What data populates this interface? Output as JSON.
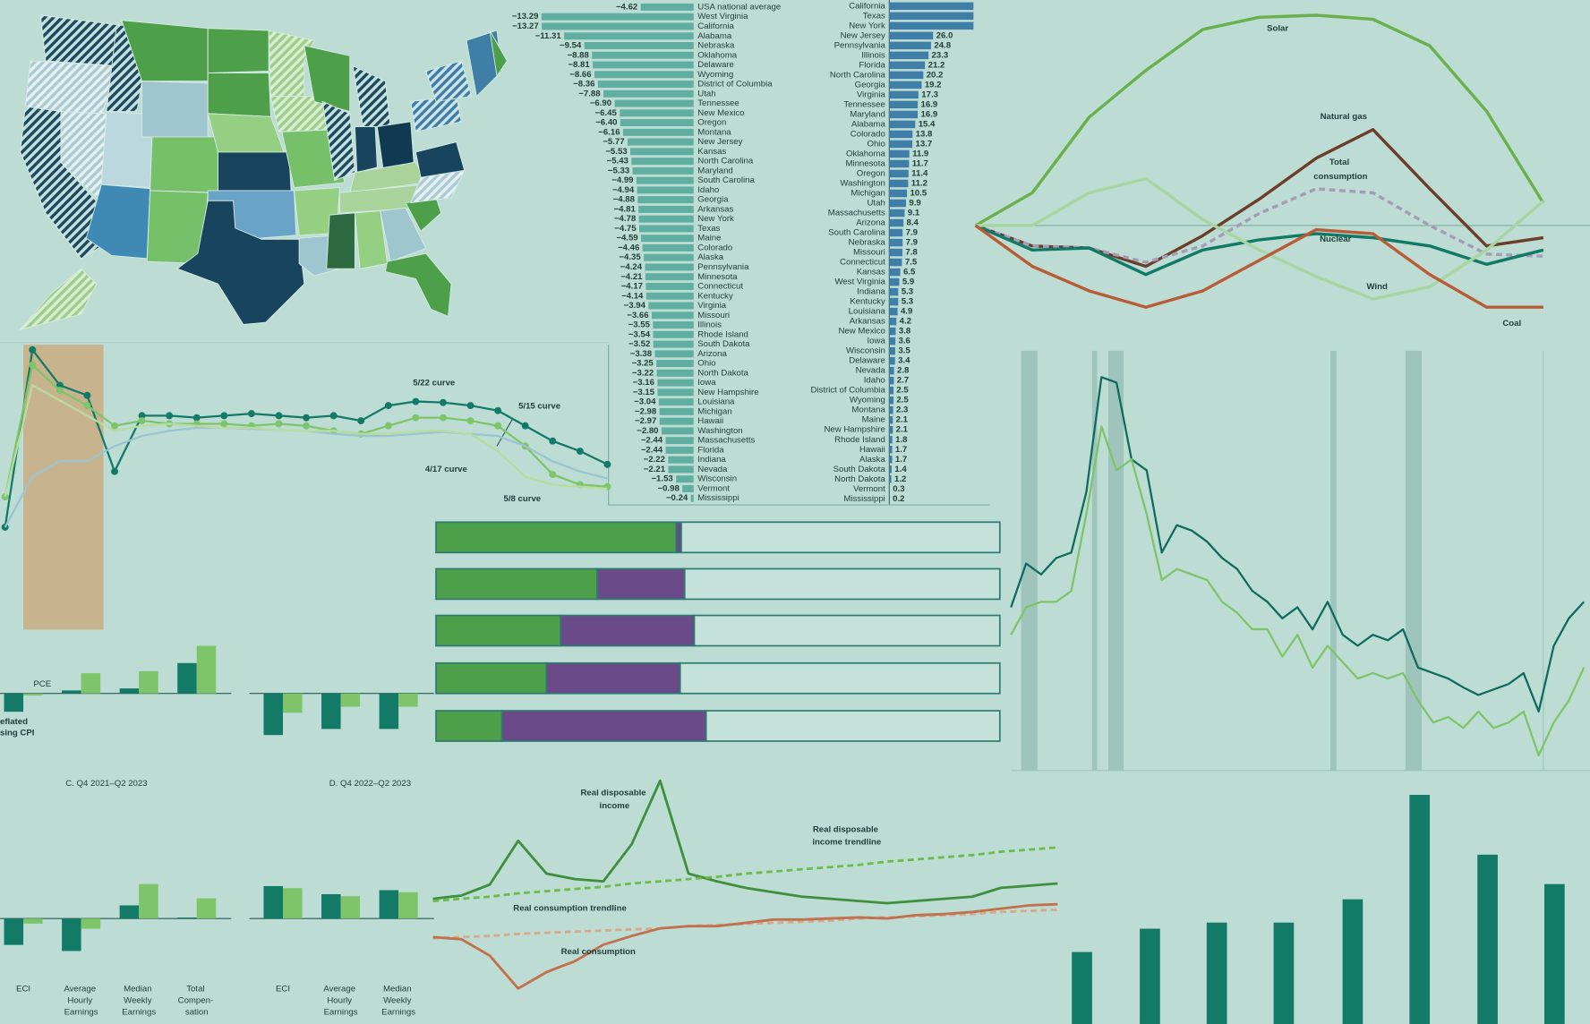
{
  "chart_data": [
    {
      "type": "bar",
      "orientation": "horizontal",
      "color": "#5fae9f",
      "categories": [
        "USA national average",
        "West Virginia",
        "California",
        "Alabama",
        "Nebraska",
        "Oklahoma",
        "Delaware",
        "Wyoming",
        "District of Columbia",
        "Utah",
        "Tennessee",
        "New Mexico",
        "Oregon",
        "Montana",
        "New Jersey",
        "Kansas",
        "North Carolina",
        "Maryland",
        "South Carolina",
        "Idaho",
        "Georgia",
        "Arkansas",
        "New York",
        "Texas",
        "Maine",
        "Colorado",
        "Alaska",
        "Pennsylvania",
        "Minnesota",
        "Connecticut",
        "Kentucky",
        "Virginia",
        "Missouri",
        "Illinois",
        "Rhode Island",
        "South Dakota",
        "Arizona",
        "Ohio",
        "North Dakota",
        "Iowa",
        "New Hampshire",
        "Louisiana",
        "Michigan",
        "Hawaii",
        "Washington",
        "Massachusetts",
        "Florida",
        "Indiana",
        "Nevada",
        "Wisconsin",
        "Vermont",
        "Mississippi"
      ],
      "values": [
        -4.62,
        -13.29,
        -13.27,
        -11.31,
        -9.54,
        -8.88,
        -8.81,
        -8.66,
        -8.36,
        -7.88,
        -6.9,
        -6.45,
        -6.4,
        -6.16,
        -5.77,
        -5.53,
        -5.43,
        -5.33,
        -4.99,
        -4.94,
        -4.88,
        -4.81,
        -4.78,
        -4.75,
        -4.59,
        -4.46,
        -4.35,
        -4.24,
        -4.21,
        -4.17,
        -4.14,
        -3.94,
        -3.66,
        -3.55,
        -3.54,
        -3.52,
        -3.38,
        -3.25,
        -3.22,
        -3.16,
        -3.15,
        -3.04,
        -2.98,
        -2.97,
        -2.8,
        -2.44,
        -2.44,
        -2.22,
        -2.21,
        -1.53,
        -0.98,
        -0.24
      ],
      "value_labels": [
        "−4.62",
        "−13.29",
        "−13.27",
        "−11.31",
        "−9.54",
        "−8.88",
        "−8.81",
        "−8.66",
        "−8.36",
        "−7.88",
        "−6.90",
        "−6.45",
        "−6.40",
        "−6.16",
        "−5.77",
        "−5.53",
        "−5.43",
        "−5.33",
        "−4.99",
        "−4.94",
        "−4.88",
        "−4.81",
        "−4.78",
        "−4.75",
        "−4.59",
        "−4.46",
        "−4.35",
        "−4.24",
        "−4.21",
        "−4.17",
        "−4.14",
        "−3.94",
        "−3.66",
        "−3.55",
        "−3.54",
        "−3.52",
        "−3.38",
        "−3.25",
        "−3.22",
        "−3.16",
        "−3.15",
        "−3.04",
        "−2.98",
        "−2.97",
        "−2.80",
        "−2.44",
        "−2.44",
        "−2.22",
        "−2.21",
        "−1.53",
        "−0.98",
        "−0.24"
      ]
    },
    {
      "type": "bar",
      "orientation": "horizontal",
      "color": "#3f7ea6",
      "categories": [
        "California",
        "Texas",
        "New York",
        "New Jersey",
        "Pennsylvania",
        "Illinois",
        "Florida",
        "North Carolina",
        "Georgia",
        "Virginia",
        "Tennessee",
        "Maryland",
        "Alabama",
        "Colorado",
        "Ohio",
        "Oklahoma",
        "Minnesota",
        "Oregon",
        "Washington",
        "Michigan",
        "Utah",
        "Massachusetts",
        "Arizona",
        "South Carolina",
        "Nebraska",
        "Missouri",
        "Connecticut",
        "Kansas",
        "West Virginia",
        "Indiana",
        "Kentucky",
        "Louisiana",
        "Arkansas",
        "New Mexico",
        "Iowa",
        "Wisconsin",
        "Delaware",
        "Nevada",
        "Idaho",
        "District of Columbia",
        "Wyoming",
        "Montana",
        "Maine",
        "New Hampshire",
        "Rhode Island",
        "Hawaii",
        "Alaska",
        "South Dakota",
        "North Dakota",
        "Vermont",
        "Mississippi"
      ],
      "values": [
        50,
        50,
        50,
        26.0,
        24.8,
        23.3,
        21.2,
        20.2,
        19.2,
        17.3,
        16.9,
        16.9,
        15.4,
        13.8,
        13.7,
        11.9,
        11.7,
        11.4,
        11.2,
        10.5,
        9.9,
        9.1,
        8.4,
        7.9,
        7.9,
        7.8,
        7.5,
        6.5,
        5.9,
        5.3,
        5.3,
        4.9,
        4.2,
        3.8,
        3.6,
        3.5,
        3.4,
        2.8,
        2.7,
        2.5,
        2.5,
        2.3,
        2.1,
        2.1,
        1.8,
        1.7,
        1.7,
        1.4,
        1.2,
        0.3,
        0.2
      ],
      "value_labels": [
        null,
        null,
        null,
        "26.0",
        "24.8",
        "23.3",
        "21.2",
        "20.2",
        "19.2",
        "17.3",
        "16.9",
        "16.9",
        "15.4",
        "13.8",
        "13.7",
        "11.9",
        "11.7",
        "11.4",
        "11.2",
        "10.5",
        "9.9",
        "9.1",
        "8.4",
        "7.9",
        "7.9",
        "7.8",
        "7.5",
        "6.5",
        "5.9",
        "5.3",
        "5.3",
        "4.9",
        "4.2",
        "3.8",
        "3.6",
        "3.5",
        "3.4",
        "2.8",
        "2.7",
        "2.5",
        "2.5",
        "2.3",
        "2.1",
        "2.1",
        "1.8",
        "1.7",
        "1.7",
        "1.4",
        "1.2",
        "0.3",
        "0.2"
      ]
    },
    {
      "type": "line",
      "series": [
        {
          "name": "Solar",
          "color": "#6ab04c",
          "values": [
            0,
            16,
            53,
            76,
            96,
            102,
            103,
            101,
            88,
            56,
            11
          ]
        },
        {
          "name": "Natural gas",
          "color": "#6b3d2a",
          "values": [
            0,
            -10,
            -11,
            -20,
            -5,
            13,
            33,
            47,
            18,
            -10,
            -6
          ]
        },
        {
          "name": "Total consumption",
          "color": "#a59cb5",
          "dash": true,
          "values": [
            0,
            -10,
            -11,
            -18,
            -10,
            6,
            18,
            16,
            0,
            -14,
            -15
          ]
        },
        {
          "name": "Nuclear",
          "color": "#117a65",
          "values": [
            0,
            -12,
            -11,
            -24,
            -12,
            -7,
            -4,
            -6,
            -10,
            -19,
            -12
          ]
        },
        {
          "name": "Wind",
          "color": "#a8d5a2",
          "values": [
            0,
            0,
            16,
            23,
            3,
            -12,
            -25,
            -36,
            -30,
            -12,
            12
          ]
        },
        {
          "name": "Coal",
          "color": "#b85c38",
          "values": [
            0,
            -20,
            -32,
            -40,
            -32,
            -17,
            -2,
            -4,
            -24,
            -40,
            -40
          ]
        }
      ]
    },
    {
      "type": "line",
      "series": [
        {
          "name": "5/22 curve",
          "color": "#137a68",
          "markers": true,
          "values": [
            10,
            27.5,
            24,
            23,
            15.5,
            21,
            21,
            20.8,
            21,
            21.2,
            21,
            20.8,
            21,
            20.5,
            22,
            22.4,
            22.3,
            22,
            21.5,
            20,
            18.5,
            17.5,
            16.2
          ]
        },
        {
          "name": "5/15 curve",
          "color": "#7ec46a",
          "markers": true,
          "values": [
            13,
            26,
            23.5,
            22,
            20,
            20.5,
            20.2,
            20.2,
            20.2,
            20,
            20.2,
            20,
            19.5,
            19.2,
            20,
            20.8,
            20.8,
            20.5,
            20,
            18,
            15.2,
            14.2,
            14
          ]
        },
        {
          "name": "4/17 curve",
          "color": "#9cc3d0",
          "values": [
            10,
            15,
            16.5,
            16.5,
            18,
            19,
            19.5,
            19.8,
            19.8,
            19.7,
            19.6,
            19.5,
            19.2,
            19,
            19,
            19.2,
            19.4,
            19.2,
            19,
            18,
            16.5,
            15.5,
            14.8
          ]
        },
        {
          "name": "5/8 curve",
          "color": "#b8dc9f",
          "values": [
            13,
            24,
            22.5,
            21,
            19.5,
            20,
            20.2,
            20,
            19.8,
            19.8,
            19.6,
            19.5,
            19.5,
            19.2,
            19.2,
            19.5,
            19.5,
            19.2,
            17.5,
            15,
            14.2,
            14,
            13.8
          ]
        }
      ]
    },
    {
      "type": "bar",
      "annotations": [
        "PCE",
        "eflated",
        "sing CPI"
      ],
      "series": [
        {
          "color": "#137a68",
          "values": [
            -1.8,
            0.3,
            0.5,
            3.0
          ]
        },
        {
          "color": "#7ec46a",
          "values": [
            -0.2,
            2.0,
            2.2,
            4.7
          ]
        }
      ]
    },
    {
      "type": "bar",
      "series": [
        {
          "color": "#137a68",
          "values": [
            -4.1,
            -3.5,
            -3.5
          ]
        },
        {
          "color": "#7ec46a",
          "values": [
            -1.9,
            -1.3,
            -1.3
          ]
        }
      ]
    },
    {
      "type": "bar",
      "title": "C. Q4 2021–Q2 2023",
      "categories": [
        "ECI",
        "Average Hourly Earnings",
        "Median Weekly Earnings",
        "Total Compen- sation"
      ],
      "series": [
        {
          "color": "#137a68",
          "values": [
            -2.6,
            -3.2,
            1.3,
            0.1
          ]
        },
        {
          "color": "#7ec46a",
          "values": [
            -0.5,
            -1.0,
            3.4,
            2.0
          ]
        }
      ]
    },
    {
      "type": "bar",
      "title": "D. Q4 2022–Q2 2023",
      "categories": [
        "ECI",
        "Average Hourly Earnings",
        "Median Weekly Earnings"
      ],
      "series": [
        {
          "color": "#137a68",
          "values": [
            3.2,
            2.4,
            2.8
          ]
        },
        {
          "color": "#7ec46a",
          "values": [
            3.0,
            2.2,
            2.6
          ]
        }
      ]
    },
    {
      "type": "bar",
      "orientation": "horizontal",
      "stacked": true,
      "series": [
        {
          "color": "#4e9f4a",
          "values": [
            42.6,
            28.6,
            22.1,
            19.6,
            11.7
          ]
        },
        {
          "color": "#6b4a8a",
          "values": [
            0.9,
            15.5,
            23.7,
            23.7,
            36.2
          ]
        },
        {
          "color": "#c4e2da",
          "values": [
            56.5,
            55.9,
            54.2,
            56.7,
            52.1
          ]
        }
      ]
    },
    {
      "type": "line",
      "series": [
        {
          "name": "Real disposable income",
          "color": "#3f8f3f",
          "values": [
            12.2,
            12.5,
            13.5,
            17.5,
            14.5,
            14,
            13.8,
            17.2,
            23,
            14.5,
            13.8,
            13.2,
            12.8,
            12.4,
            12.2,
            12,
            11.8,
            12,
            12.2,
            12.4,
            13.2,
            13.4,
            13.6
          ]
        },
        {
          "name": "Real disposable income trendline",
          "color": "#6dbb4a",
          "dash": true,
          "values": [
            12.0,
            12.2,
            12.4,
            12.7,
            12.9,
            13.1,
            13.3,
            13.6,
            13.8,
            14.0,
            14.2,
            14.5,
            14.7,
            14.9,
            15.1,
            15.3,
            15.6,
            15.8,
            16.0,
            16.2,
            16.5,
            16.7,
            16.9
          ]
        },
        {
          "name": "Real consumption trendline",
          "color": "#d8a88a",
          "dash": true,
          "values": [
            8.6,
            8.7,
            8.8,
            9.0,
            9.1,
            9.2,
            9.3,
            9.4,
            9.5,
            9.7,
            9.8,
            9.9,
            10.0,
            10.1,
            10.2,
            10.4,
            10.5,
            10.6,
            10.7,
            10.8,
            11.0,
            11.1,
            11.2
          ]
        },
        {
          "name": "Real consumption",
          "color": "#c0714d",
          "values": [
            8.7,
            8.5,
            7.0,
            4.0,
            5.5,
            6.5,
            8.0,
            8.8,
            9.5,
            9.7,
            9.7,
            10.0,
            10.3,
            10.3,
            10.4,
            10.5,
            10.4,
            10.7,
            10.8,
            11.0,
            11.3,
            11.6,
            11.7
          ]
        }
      ]
    },
    {
      "type": "line",
      "series": [
        {
          "color": "#0f6b5c",
          "values": [
            19.5,
            23.5,
            22.5,
            24,
            24.5,
            30,
            40.5,
            40,
            33,
            32,
            24.5,
            27,
            26.5,
            25.5,
            24,
            23,
            21,
            20,
            18.5,
            19.5,
            17.5,
            20,
            17,
            16,
            17,
            16.5,
            17.5,
            14,
            13.5,
            13,
            12.2,
            11.5,
            12,
            12.5,
            13.5,
            10,
            16,
            18.5,
            20
          ]
        },
        {
          "color": "#7ec46a",
          "values": [
            17,
            19.5,
            20,
            20,
            21,
            28,
            36,
            32,
            33,
            28,
            22,
            23,
            22.5,
            22,
            20,
            19,
            17.5,
            17.5,
            15,
            17,
            14,
            16,
            14.5,
            13,
            13.5,
            13,
            13.5,
            11,
            9,
            9.5,
            8.5,
            10,
            8.5,
            9,
            10,
            6,
            9,
            11,
            14
          ]
        }
      ]
    },
    {
      "type": "bar",
      "orientation": "vertical",
      "color": "#137a68",
      "values": [
        7.1,
        9.4,
        10,
        10,
        12.3,
        22.6,
        16.7,
        13.8
      ]
    }
  ]
}
